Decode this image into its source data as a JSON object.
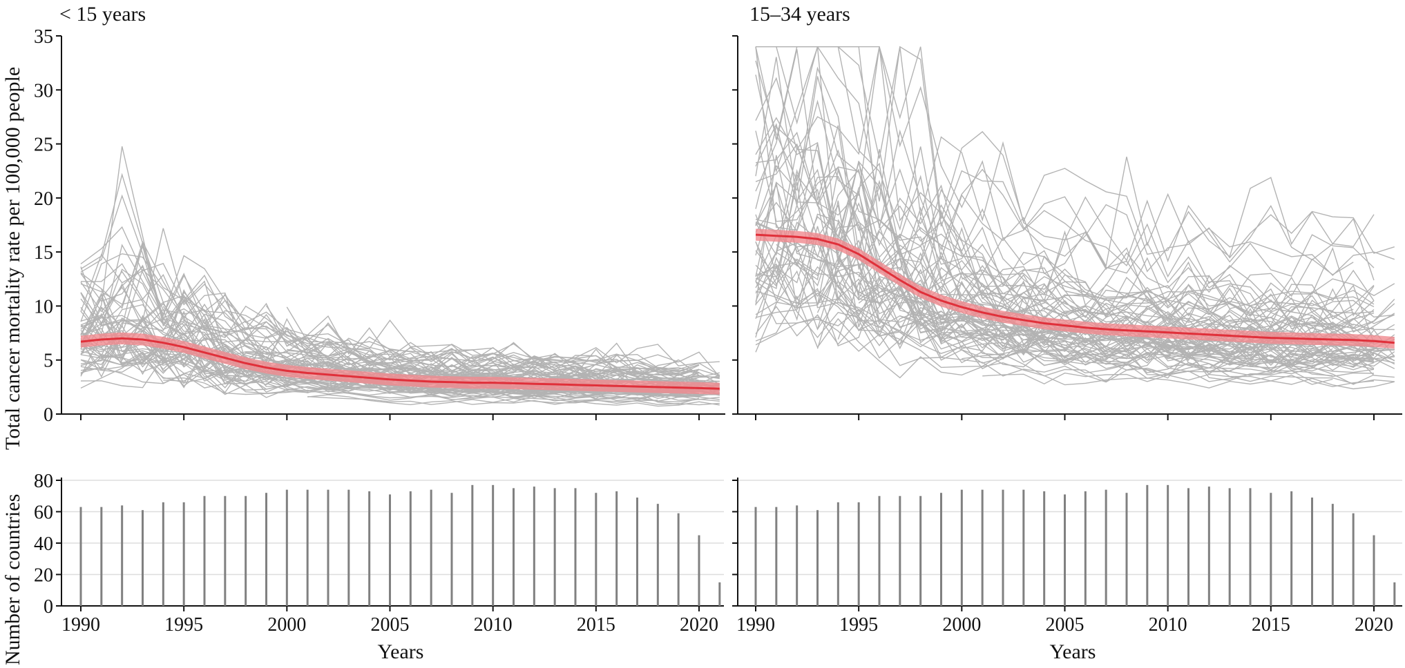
{
  "chart_data": [
    {
      "type": "line",
      "panel": "top-left",
      "title": "< 15 years",
      "ylabel": "Total cancer mortality rate per 100,000 people",
      "xlabel": "",
      "xlim": [
        1990,
        2021
      ],
      "ylim": [
        0,
        35
      ],
      "yticks": [
        0,
        5,
        10,
        15,
        20,
        25,
        30,
        35
      ],
      "xticks": [
        1990,
        1995,
        2000,
        2005,
        2010,
        2015,
        2020
      ],
      "grid": false,
      "colors": {
        "country_lines": "#9a9a9a",
        "trend": "#e0303a",
        "band": "#f08a8e"
      },
      "trend": {
        "x": [
          1990,
          1991,
          1992,
          1993,
          1994,
          1995,
          1996,
          1997,
          1998,
          1999,
          2000,
          2001,
          2002,
          2003,
          2004,
          2005,
          2006,
          2007,
          2008,
          2009,
          2010,
          2011,
          2012,
          2013,
          2014,
          2015,
          2016,
          2017,
          2018,
          2019,
          2020,
          2021
        ],
        "y": [
          6.7,
          6.9,
          7.0,
          6.9,
          6.6,
          6.2,
          5.7,
          5.2,
          4.7,
          4.3,
          4.0,
          3.8,
          3.65,
          3.5,
          3.35,
          3.2,
          3.1,
          3.0,
          2.95,
          2.9,
          2.9,
          2.85,
          2.8,
          2.75,
          2.7,
          2.65,
          2.6,
          2.55,
          2.5,
          2.45,
          2.4,
          2.35
        ]
      },
      "country_lines": {
        "count": 80,
        "y_range_observed": [
          0,
          20.6
        ]
      }
    },
    {
      "type": "line",
      "panel": "top-right",
      "title": "15–34 years",
      "xlabel": "",
      "xlim": [
        1990,
        2021
      ],
      "ylim": [
        0,
        35
      ],
      "xticks": [
        1990,
        1995,
        2000,
        2005,
        2010,
        2015,
        2020
      ],
      "grid": false,
      "colors": {
        "country_lines": "#9a9a9a",
        "trend": "#e0303a",
        "band": "#f08a8e"
      },
      "trend": {
        "x": [
          1990,
          1991,
          1992,
          1993,
          1994,
          1995,
          1996,
          1997,
          1998,
          1999,
          2000,
          2001,
          2002,
          2003,
          2004,
          2005,
          2006,
          2007,
          2008,
          2009,
          2010,
          2011,
          2012,
          2013,
          2014,
          2015,
          2016,
          2017,
          2018,
          2019,
          2020,
          2021
        ],
        "y": [
          16.6,
          16.5,
          16.4,
          16.2,
          15.7,
          14.8,
          13.6,
          12.4,
          11.3,
          10.5,
          9.9,
          9.4,
          9.0,
          8.7,
          8.4,
          8.2,
          8.0,
          7.85,
          7.75,
          7.65,
          7.55,
          7.45,
          7.35,
          7.25,
          7.15,
          7.05,
          7.0,
          6.95,
          6.9,
          6.85,
          6.75,
          6.6
        ]
      },
      "country_lines": {
        "count": 80,
        "y_range_observed": [
          1.2,
          31.5
        ]
      }
    },
    {
      "type": "bar",
      "panel": "bottom-left",
      "ylabel": "Number of countries",
      "xlabel": "Years",
      "xlim": [
        1990,
        2021
      ],
      "ylim": [
        0,
        80
      ],
      "yticks": [
        0,
        20,
        40,
        60,
        80
      ],
      "xticks": [
        1990,
        1995,
        2000,
        2005,
        2010,
        2015,
        2020
      ],
      "grid": true,
      "colors": {
        "bar": "#808080",
        "grid": "#dddddd"
      },
      "categories": [
        1990,
        1991,
        1992,
        1993,
        1994,
        1995,
        1996,
        1997,
        1998,
        1999,
        2000,
        2001,
        2002,
        2003,
        2004,
        2005,
        2006,
        2007,
        2008,
        2009,
        2010,
        2011,
        2012,
        2013,
        2014,
        2015,
        2016,
        2017,
        2018,
        2019,
        2020,
        2021
      ],
      "values": [
        63,
        63,
        64,
        61,
        66,
        66,
        70,
        70,
        70,
        72,
        74,
        74,
        74,
        74,
        73,
        71,
        73,
        74,
        72,
        77,
        77,
        75,
        76,
        75,
        75,
        72,
        73,
        69,
        65,
        59,
        45,
        15
      ]
    },
    {
      "type": "bar",
      "panel": "bottom-right",
      "xlabel": "Years",
      "xlim": [
        1990,
        2021
      ],
      "ylim": [
        0,
        80
      ],
      "xticks": [
        1990,
        1995,
        2000,
        2005,
        2010,
        2015,
        2020
      ],
      "grid": true,
      "colors": {
        "bar": "#808080",
        "grid": "#dddddd"
      },
      "categories": [
        1990,
        1991,
        1992,
        1993,
        1994,
        1995,
        1996,
        1997,
        1998,
        1999,
        2000,
        2001,
        2002,
        2003,
        2004,
        2005,
        2006,
        2007,
        2008,
        2009,
        2010,
        2011,
        2012,
        2013,
        2014,
        2015,
        2016,
        2017,
        2018,
        2019,
        2020,
        2021
      ],
      "values": [
        63,
        63,
        64,
        61,
        66,
        66,
        70,
        70,
        70,
        72,
        74,
        74,
        74,
        74,
        73,
        71,
        73,
        74,
        72,
        77,
        77,
        75,
        76,
        75,
        75,
        72,
        73,
        69,
        65,
        59,
        45,
        15
      ]
    }
  ]
}
